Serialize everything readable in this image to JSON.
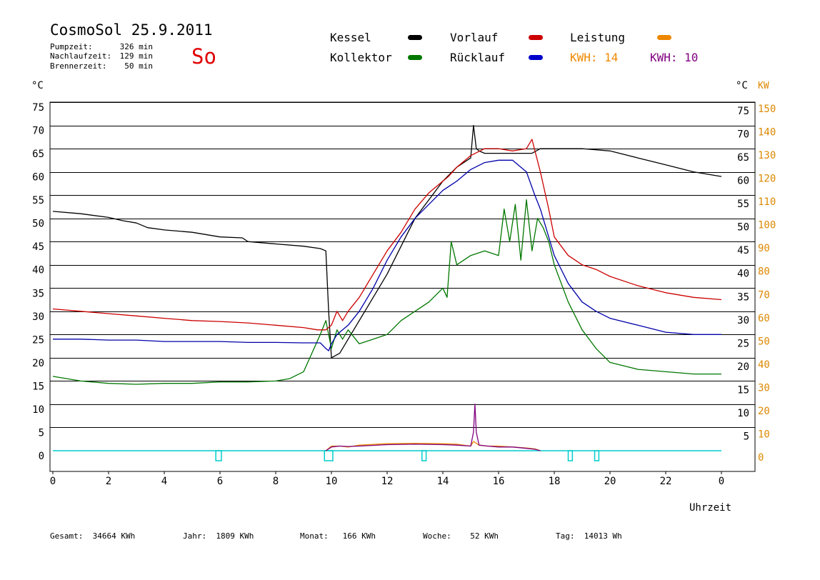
{
  "header": {
    "title": "CosmoSol 25.9.2011",
    "stats": [
      {
        "label": "Pumpzeit:",
        "value": "326 min"
      },
      {
        "label": "Nachlaufzeit:",
        "value": "129 min"
      },
      {
        "label": "Brennerzeit:",
        "value": "50 min"
      }
    ],
    "day": "So"
  },
  "legend": {
    "kessel": "Kessel",
    "kollektor": "Kollektor",
    "vorlauf": "Vorlauf",
    "ruecklauf": "Rücklauf",
    "leistung": "Leistung",
    "kwh_a": "KWH: 14",
    "kwh_b": "KWH: 10"
  },
  "footer": {
    "gesamt_label": "Gesamt:",
    "gesamt_value": "34664 KWh",
    "jahr_label": "Jahr:",
    "jahr_value": "1809 KWh",
    "monat_label": "Monat:",
    "monat_value": "166 KWh",
    "woche_label": "Woche:",
    "woche_value": "52 KWh",
    "tag_label": "Tag:",
    "tag_value": "14013 Wh"
  },
  "colors": {
    "kessel": "#000000",
    "kollektor": "#007700",
    "vorlauf": "#cc0000",
    "ruecklauf": "#0000aa",
    "leistung": "#ee8800",
    "kwh_b": "#800080",
    "pump": "#00cccc",
    "axis_right": "#dd8800"
  },
  "chart_data": {
    "type": "line",
    "xlabel": "Uhrzeit",
    "ylabel_left": "°C",
    "ylabel_right_c": "°C",
    "ylabel_right_kw": "KW",
    "x_ticks": [
      "0",
      "2",
      "4",
      "6",
      "8",
      "10",
      "12",
      "14",
      "16",
      "18",
      "20",
      "22",
      "0"
    ],
    "y_ticks_left": [
      "75",
      "70",
      "65",
      "60",
      "55",
      "50",
      "45",
      "40",
      "35",
      "30",
      "25",
      "20",
      "15",
      "10",
      "5",
      "0"
    ],
    "y_ticks_right_c": [
      "75",
      "70",
      "65",
      "60",
      "55",
      "50",
      "45",
      "40",
      "35",
      "30",
      "25",
      "20",
      "15",
      "10",
      "5"
    ],
    "y_ticks_right_kw": [
      "150",
      "140",
      "130",
      "120",
      "110",
      "100",
      "90",
      "80",
      "70",
      "60",
      "50",
      "40",
      "30",
      "20",
      "10",
      "0"
    ],
    "xlim": [
      0,
      24
    ],
    "ylim": [
      0,
      75
    ],
    "series": [
      {
        "key": "kessel",
        "name": "Kessel",
        "x": [
          0,
          1,
          2,
          2.5,
          3,
          3.4,
          4,
          5,
          6,
          6.8,
          7,
          8,
          9,
          9.6,
          9.8,
          9.9,
          10,
          10.3,
          10.6,
          11,
          11.5,
          12,
          12.5,
          13,
          13.5,
          14,
          14.5,
          15,
          15.1,
          15.2,
          15.3,
          15.5,
          16,
          16.5,
          17,
          17.2,
          17.5,
          18,
          19,
          20,
          21,
          22,
          23,
          24
        ],
        "y": [
          51.5,
          51,
          50.2,
          49.5,
          49,
          48,
          47.5,
          47,
          46,
          45.8,
          45,
          44.5,
          44,
          43.5,
          43,
          30,
          20,
          21,
          24,
          28,
          33,
          38,
          44,
          50,
          54,
          58,
          61,
          63,
          70,
          65,
          64.5,
          64,
          64,
          64,
          64,
          64,
          65,
          65,
          65,
          64.5,
          63,
          61.5,
          60,
          59
        ]
      },
      {
        "key": "kollektor",
        "name": "Kollektor",
        "x": [
          0,
          0.5,
          1,
          2,
          3,
          4,
          5,
          6,
          7,
          8,
          8.5,
          9,
          9.3,
          9.6,
          9.8,
          10,
          10.2,
          10.4,
          10.6,
          11,
          12,
          12.5,
          13,
          13.5,
          14,
          14.15,
          14.3,
          14.5,
          15,
          15.5,
          16,
          16.2,
          16.4,
          16.6,
          16.8,
          17,
          17.2,
          17.4,
          17.6,
          17.8,
          18,
          18.5,
          19,
          19.5,
          20,
          21,
          22,
          23,
          24
        ],
        "y": [
          16,
          15.5,
          15,
          14.5,
          14.3,
          14.5,
          14.5,
          14.8,
          14.8,
          15,
          15.5,
          17,
          21,
          25,
          28,
          22,
          26,
          24,
          26,
          23,
          25,
          28,
          30,
          32,
          35,
          33,
          45,
          40,
          42,
          43,
          42,
          52,
          45,
          53,
          41,
          54,
          43,
          50,
          48,
          45,
          40,
          32,
          26,
          22,
          19,
          17.5,
          17,
          16.5,
          16.5
        ]
      },
      {
        "key": "vorlauf",
        "name": "Vorlauf",
        "x": [
          0,
          1,
          2,
          3,
          4,
          5,
          6,
          7,
          8,
          9,
          9.5,
          9.8,
          10,
          10.2,
          10.4,
          10.6,
          11,
          11.5,
          12,
          12.5,
          13,
          13.5,
          14,
          14.2,
          14.5,
          15,
          15.5,
          16,
          16.5,
          17,
          17.2,
          17.5,
          17.8,
          18,
          18.5,
          19,
          19.5,
          20,
          21,
          22,
          23,
          24
        ],
        "y": [
          30.5,
          30,
          29.5,
          29,
          28.5,
          28,
          27.8,
          27.5,
          27,
          26.5,
          26,
          26,
          27,
          30,
          28,
          30,
          33,
          38,
          43,
          47,
          52,
          55.5,
          58,
          59,
          61,
          63.5,
          65,
          65,
          64.5,
          65,
          67,
          60,
          52,
          46,
          42,
          40,
          39,
          37.5,
          35.5,
          34,
          33,
          32.5
        ]
      },
      {
        "key": "ruecklauf",
        "name": "Rücklauf",
        "x": [
          0,
          1,
          2,
          3,
          4,
          5,
          6,
          7,
          8,
          9,
          9.6,
          9.8,
          9.9,
          10,
          10.2,
          10.4,
          10.6,
          11,
          11.5,
          12,
          12.5,
          13,
          13.5,
          14,
          14.5,
          15,
          15.5,
          16,
          16.5,
          17,
          17.3,
          17.5,
          18,
          18.5,
          19,
          19.5,
          20,
          21,
          22,
          23,
          24
        ],
        "y": [
          24,
          24,
          23.8,
          23.8,
          23.5,
          23.5,
          23.5,
          23.3,
          23.3,
          23.2,
          23.2,
          22,
          21.5,
          23,
          25,
          26,
          27,
          30,
          35,
          41,
          46,
          50,
          53,
          56,
          58,
          60.5,
          62,
          62.5,
          62.5,
          60,
          55,
          52,
          42,
          36,
          32,
          30,
          28.5,
          27,
          25.5,
          25,
          25
        ]
      },
      {
        "key": "leistung",
        "name": "Leistung",
        "x": [
          9.8,
          10,
          10.3,
          10.6,
          11,
          12,
          13,
          14,
          14.5,
          15,
          15.1,
          15.3,
          15.6,
          16,
          16.5,
          17,
          17.3,
          17.5
        ],
        "y": [
          0,
          1,
          1,
          0.8,
          1.2,
          1.5,
          1.6,
          1.5,
          1.4,
          1,
          2,
          1.2,
          1,
          1,
          0.8,
          0.6,
          0.4,
          0
        ]
      },
      {
        "key": "kwh_b",
        "name": "KWH: 10",
        "x": [
          9.8,
          10,
          10.3,
          10.6,
          11,
          12,
          13,
          14,
          14.5,
          15,
          15.1,
          15.15,
          15.2,
          15.3,
          15.6,
          16,
          16.5,
          17,
          17.3,
          17.5
        ],
        "y": [
          0,
          0.8,
          1,
          0.9,
          1,
          1.3,
          1.4,
          1.3,
          1.2,
          1,
          4,
          10,
          4,
          1.2,
          1,
          0.8,
          0.8,
          0.5,
          0.3,
          0
        ]
      }
    ]
  }
}
